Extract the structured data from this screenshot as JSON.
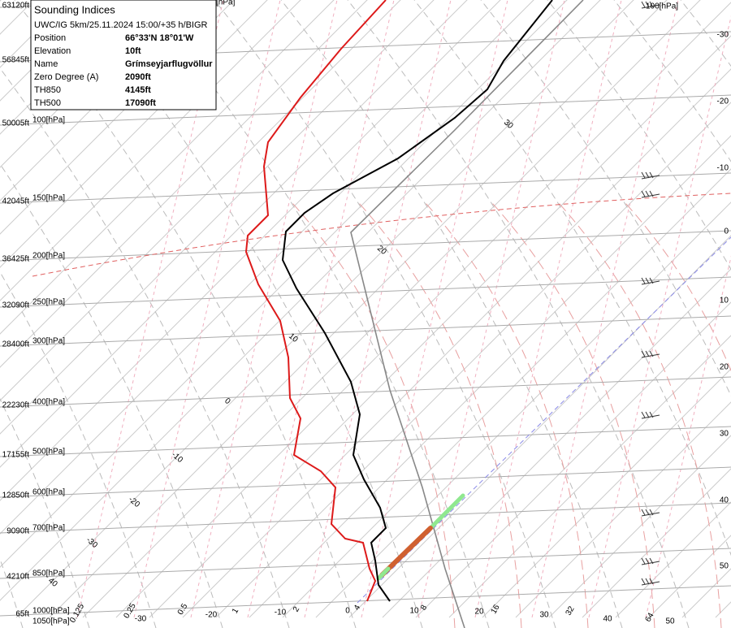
{
  "info": {
    "title": "Sounding Indices",
    "subtitle": "UWC/IG 5km/25.11.2024 15:00/+35 h/BIGR",
    "rows": [
      [
        "Position",
        "66°33'N 18°01'W"
      ],
      [
        "Elevation",
        "10ft"
      ],
      [
        "Name",
        "Grímseyjarflugvöllur"
      ],
      [
        "Zero Degree (A)",
        "2090ft"
      ],
      [
        "TH850",
        "4145ft"
      ],
      [
        "TH500",
        "17090ft"
      ]
    ]
  },
  "levels": [
    [
      "63120ft",
      "[hPa]"
    ],
    [
      "56845ft",
      null
    ],
    [
      "50005ft",
      "100[hPa]"
    ],
    [
      "42045ft",
      "150[hPa]"
    ],
    [
      "36425ft",
      "200[hPa]"
    ],
    [
      "32090ft",
      "250[hPa]"
    ],
    [
      "28400ft",
      "300[hPa]"
    ],
    [
      "22230ft",
      "400[hPa]"
    ],
    [
      "17155ft",
      "500[hPa]"
    ],
    [
      "12850ft",
      "600[hPa]"
    ],
    [
      "9090ft",
      "700[hPa]"
    ],
    [
      "4210ft",
      "850[hPa]"
    ],
    [
      "65ft",
      "1000[hPa]"
    ]
  ],
  "bottom_pressure": "1050[hPa]",
  "top_right_pressure": "100[hPa]",
  "right_temperatures": [
    -30,
    -20,
    -10,
    0,
    10,
    20,
    30,
    40,
    50
  ],
  "bottom_temperatures": [
    -30,
    -20,
    -10,
    0,
    10,
    20,
    30,
    40,
    50
  ],
  "mixing_ratios": [
    0.125,
    0.25,
    0.5,
    1,
    2,
    4,
    8,
    16,
    32,
    64
  ],
  "adiabat_labels": [
    40,
    -30,
    -20,
    -10,
    0,
    10,
    20,
    30
  ]
}
